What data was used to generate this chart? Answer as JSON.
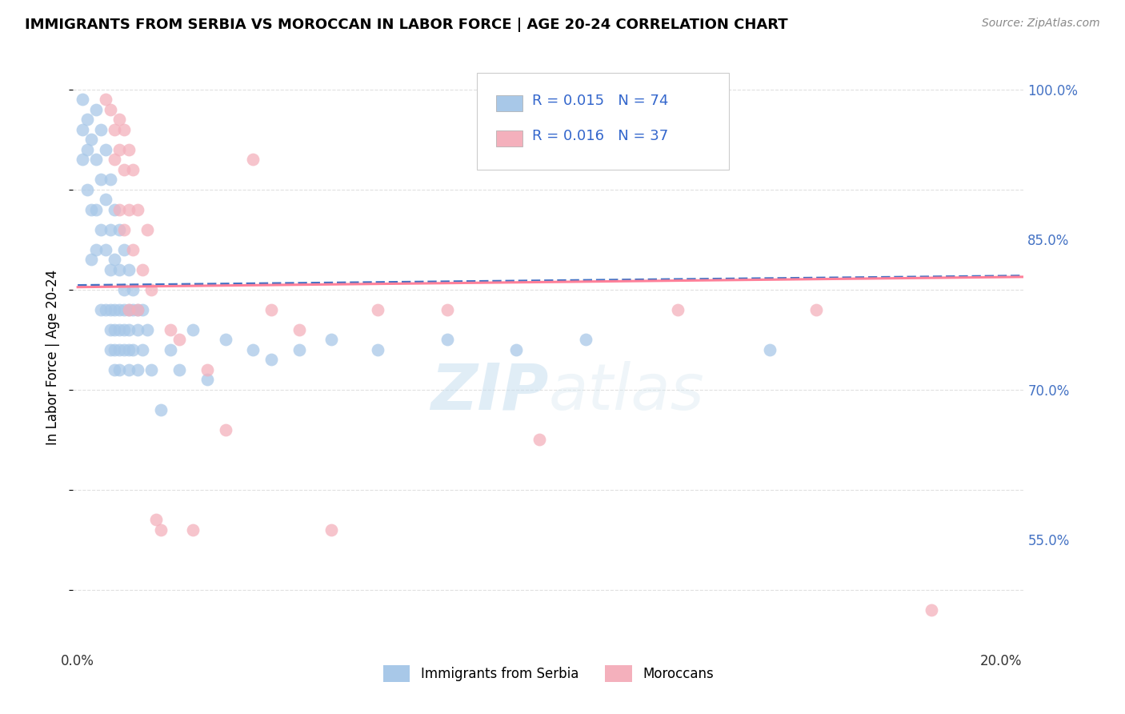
{
  "title": "IMMIGRANTS FROM SERBIA VS MOROCCAN IN LABOR FORCE | AGE 20-24 CORRELATION CHART",
  "source": "Source: ZipAtlas.com",
  "ylabel": "In Labor Force | Age 20-24",
  "ymin": 0.44,
  "ymax": 1.025,
  "xmin": -0.001,
  "xmax": 0.205,
  "serbia_color": "#a8c8e8",
  "morocco_color": "#f4b0bc",
  "serbia_line_color": "#4472C4",
  "morocco_line_color": "#FF8099",
  "legend_r_serbia": "R = 0.015",
  "legend_n_serbia": "N = 74",
  "legend_r_morocco": "R = 0.016",
  "legend_n_morocco": "N = 37",
  "watermark_zip": "ZIP",
  "watermark_atlas": "atlas",
  "gridline_color": "#e0e0e0",
  "background_color": "#ffffff",
  "serbia_x": [
    0.001,
    0.001,
    0.001,
    0.002,
    0.002,
    0.002,
    0.003,
    0.003,
    0.003,
    0.004,
    0.004,
    0.004,
    0.004,
    0.005,
    0.005,
    0.005,
    0.005,
    0.006,
    0.006,
    0.006,
    0.006,
    0.007,
    0.007,
    0.007,
    0.007,
    0.007,
    0.007,
    0.008,
    0.008,
    0.008,
    0.008,
    0.008,
    0.008,
    0.009,
    0.009,
    0.009,
    0.009,
    0.009,
    0.009,
    0.01,
    0.01,
    0.01,
    0.01,
    0.01,
    0.011,
    0.011,
    0.011,
    0.011,
    0.011,
    0.012,
    0.012,
    0.012,
    0.013,
    0.013,
    0.013,
    0.014,
    0.014,
    0.015,
    0.016,
    0.018,
    0.02,
    0.022,
    0.025,
    0.028,
    0.032,
    0.038,
    0.042,
    0.048,
    0.055,
    0.065,
    0.08,
    0.095,
    0.11,
    0.15
  ],
  "serbia_y": [
    0.99,
    0.96,
    0.93,
    0.97,
    0.94,
    0.9,
    0.95,
    0.88,
    0.83,
    0.98,
    0.93,
    0.88,
    0.84,
    0.96,
    0.91,
    0.86,
    0.78,
    0.94,
    0.89,
    0.84,
    0.78,
    0.91,
    0.86,
    0.82,
    0.78,
    0.76,
    0.74,
    0.88,
    0.83,
    0.78,
    0.76,
    0.74,
    0.72,
    0.86,
    0.82,
    0.78,
    0.76,
    0.74,
    0.72,
    0.84,
    0.8,
    0.78,
    0.76,
    0.74,
    0.82,
    0.78,
    0.76,
    0.74,
    0.72,
    0.8,
    0.78,
    0.74,
    0.78,
    0.76,
    0.72,
    0.78,
    0.74,
    0.76,
    0.72,
    0.68,
    0.74,
    0.72,
    0.76,
    0.71,
    0.75,
    0.74,
    0.73,
    0.74,
    0.75,
    0.74,
    0.75,
    0.74,
    0.75,
    0.74
  ],
  "morocco_x": [
    0.006,
    0.007,
    0.008,
    0.008,
    0.009,
    0.009,
    0.009,
    0.01,
    0.01,
    0.01,
    0.011,
    0.011,
    0.011,
    0.012,
    0.012,
    0.013,
    0.013,
    0.014,
    0.015,
    0.016,
    0.017,
    0.018,
    0.02,
    0.022,
    0.025,
    0.028,
    0.032,
    0.038,
    0.042,
    0.048,
    0.055,
    0.065,
    0.08,
    0.1,
    0.13,
    0.16,
    0.185
  ],
  "morocco_y": [
    0.99,
    0.98,
    0.96,
    0.93,
    0.97,
    0.94,
    0.88,
    0.96,
    0.92,
    0.86,
    0.94,
    0.88,
    0.78,
    0.92,
    0.84,
    0.88,
    0.78,
    0.82,
    0.86,
    0.8,
    0.57,
    0.56,
    0.76,
    0.75,
    0.56,
    0.72,
    0.66,
    0.93,
    0.78,
    0.76,
    0.56,
    0.78,
    0.78,
    0.65,
    0.78,
    0.78,
    0.48
  ]
}
